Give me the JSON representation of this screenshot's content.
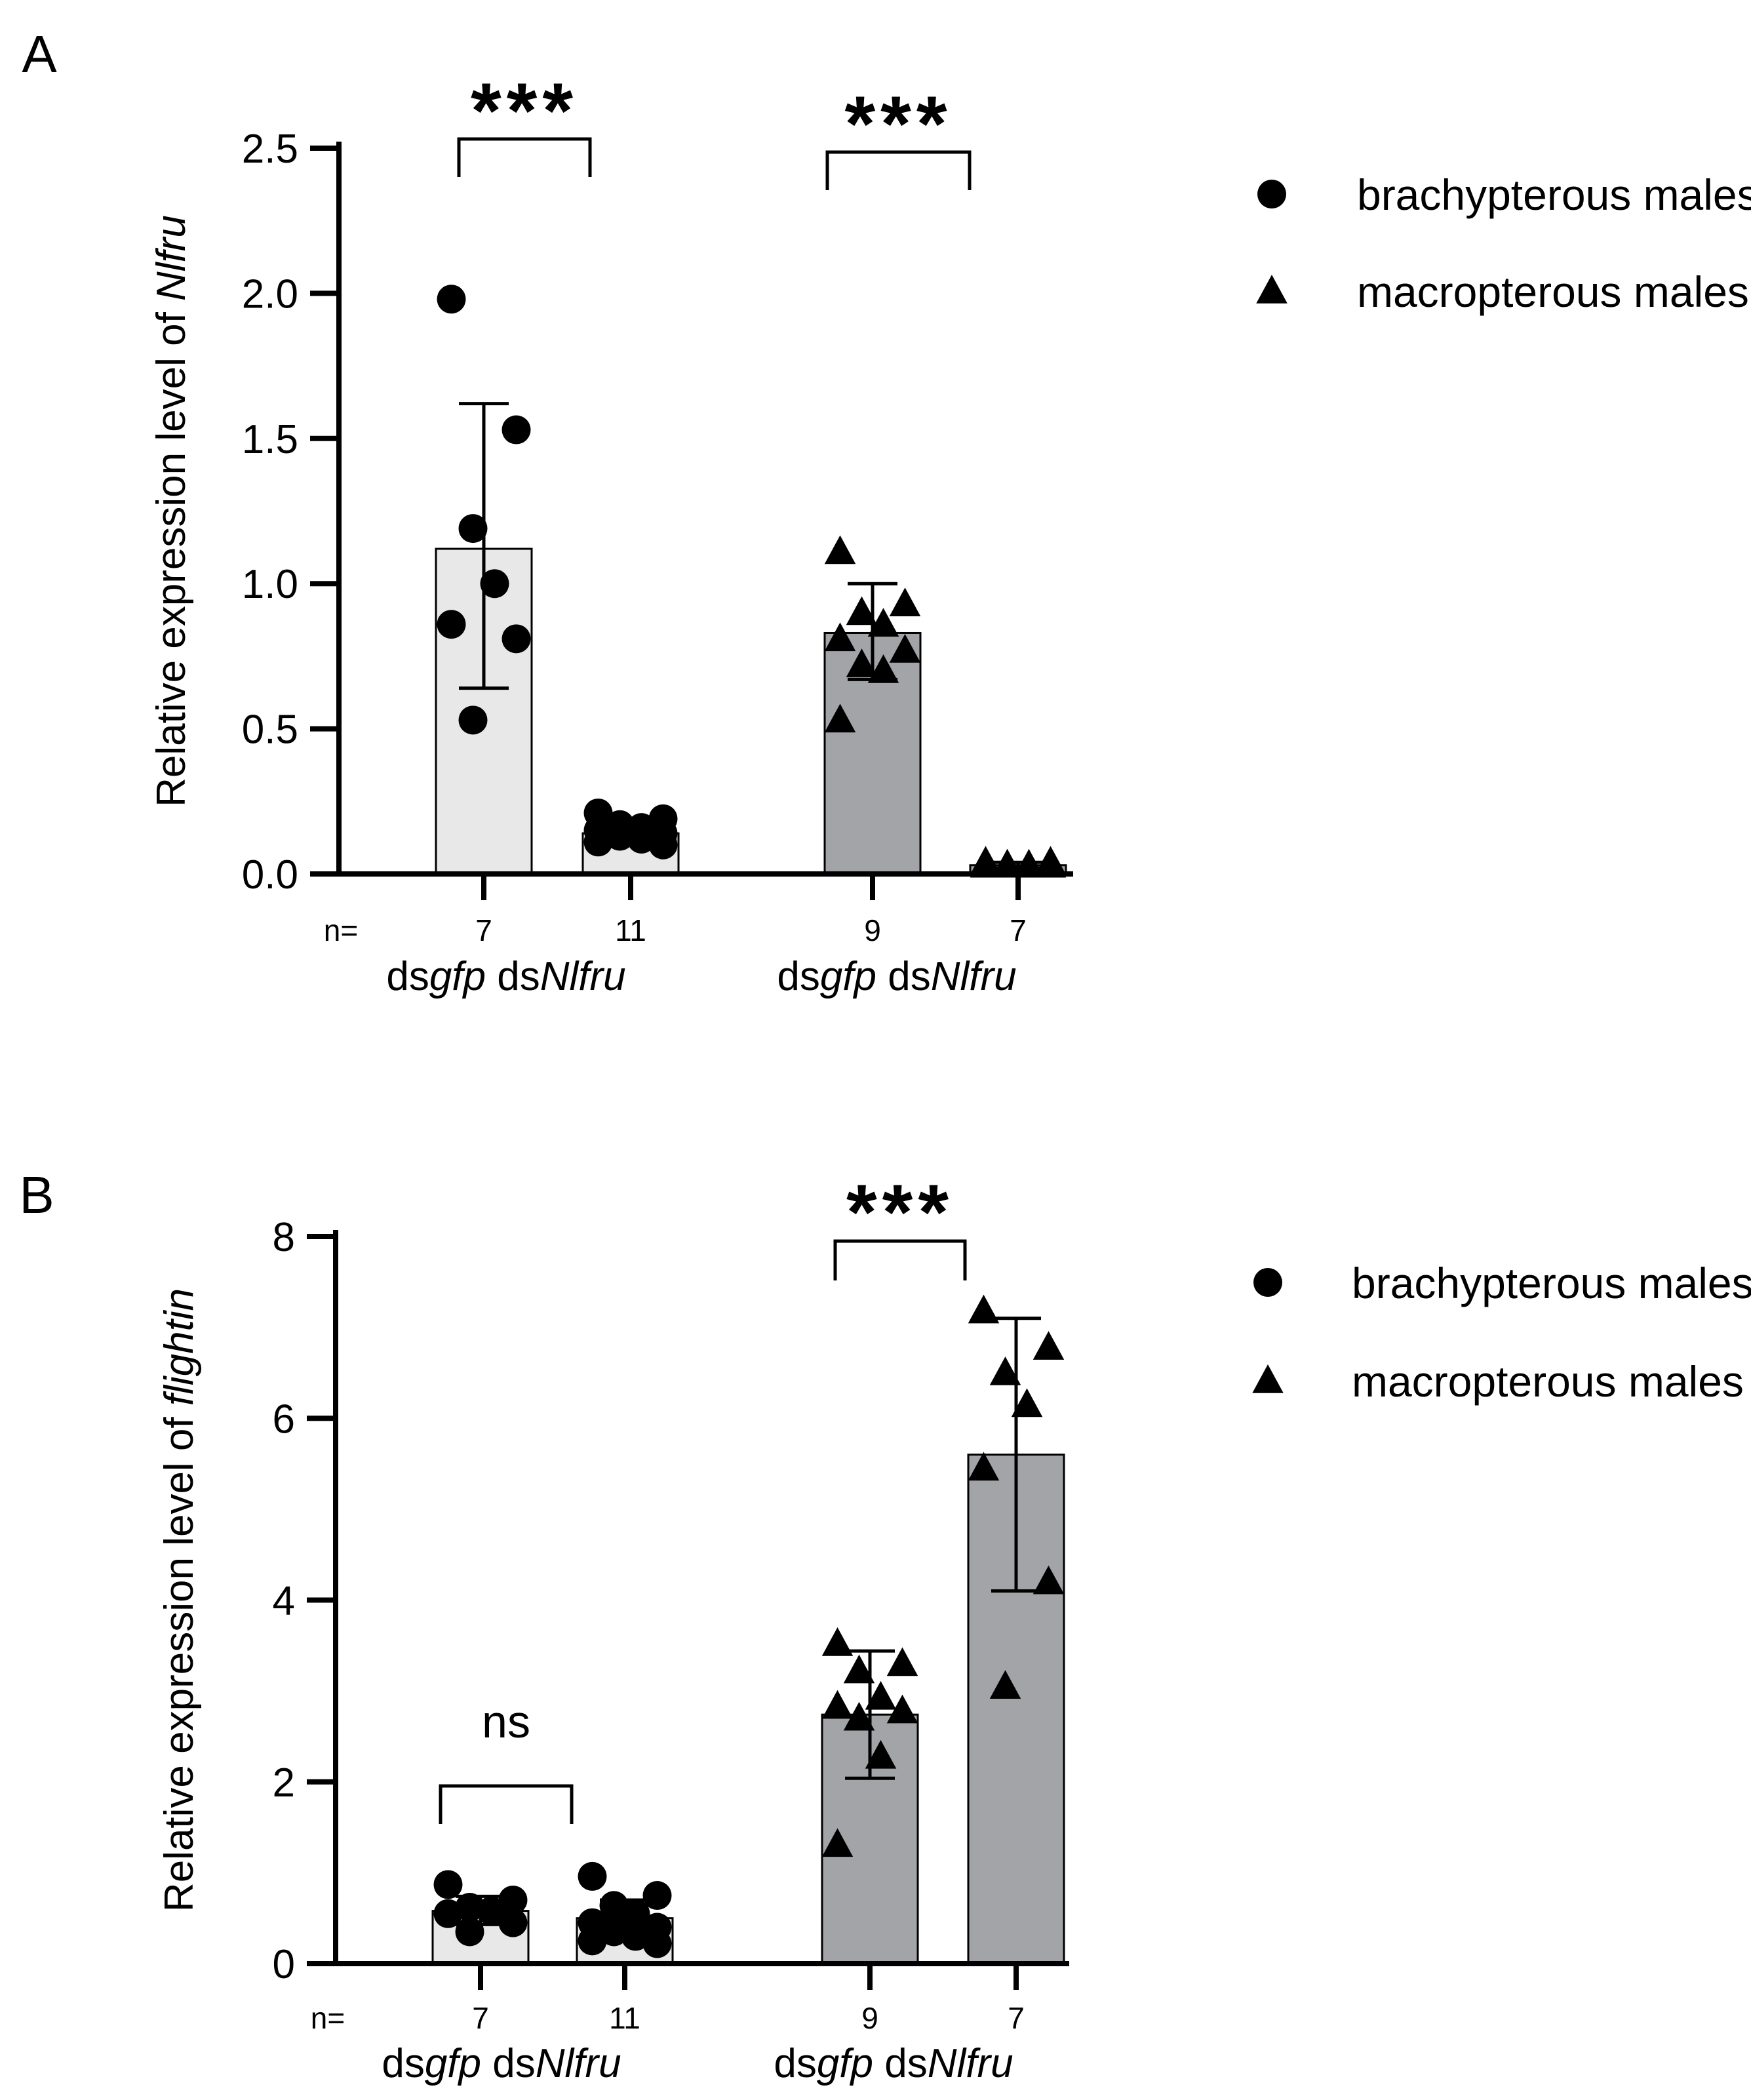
{
  "chart_data": [
    {
      "panel_label": "A",
      "type": "bar",
      "ylabel_prefix": "Relative expression level of ",
      "ylabel_gene": "Nlfru",
      "ylim": [
        0,
        2.5
      ],
      "yticks": [
        "0.0",
        "0.5",
        "1.0",
        "1.5",
        "2.0",
        "2.5"
      ],
      "n_prefix": "n=",
      "groups": [
        {
          "label_ds1": "ds",
          "label_g1": "gfp",
          "label_ds2": " ds",
          "label_g2": "Nlfru",
          "significance": "***"
        },
        {
          "label_ds1": "ds",
          "label_g1": "gfp",
          "label_ds2": " ds",
          "label_g2": "Nlfru",
          "significance": "***"
        }
      ],
      "bars": [
        {
          "treatment": "dsgfp",
          "male_type": "brachypterous males",
          "n": "7",
          "mean": 1.12,
          "sd_low": 0.64,
          "sd_high": 1.62,
          "fill": "#e8e8e8",
          "marker": "circle",
          "points": [
            1.98,
            1.53,
            1.19,
            1.0,
            0.86,
            0.81,
            0.53
          ]
        },
        {
          "treatment": "dsNlfru",
          "male_type": "brachypterous males",
          "n": "11",
          "mean": 0.14,
          "sd_low": 0.11,
          "sd_high": 0.17,
          "fill": "#e8e8e8",
          "marker": "circle",
          "points": [
            0.21,
            0.19,
            0.17,
            0.16,
            0.15,
            0.14,
            0.13,
            0.12,
            0.11,
            0.1,
            0.13
          ]
        },
        {
          "treatment": "dsgfp",
          "male_type": "macropterous males",
          "n": "9",
          "mean": 0.83,
          "sd_low": 0.67,
          "sd_high": 1.0,
          "fill": "#a3a4a7",
          "marker": "triangle",
          "points": [
            1.11,
            0.93,
            0.9,
            0.86,
            0.81,
            0.77,
            0.72,
            0.7,
            0.53
          ]
        },
        {
          "treatment": "dsNlfru",
          "male_type": "macropterous males",
          "n": "7",
          "mean": 0.03,
          "sd_low": 0.02,
          "sd_high": 0.04,
          "fill": "#a3a4a7",
          "marker": "triangle",
          "points": [
            0.04,
            0.04,
            0.03,
            0.03,
            0.03,
            0.03,
            0.03
          ]
        }
      ],
      "legend": [
        {
          "marker": "circle",
          "label": "brachypterous males"
        },
        {
          "marker": "triangle",
          "label": "macropterous males"
        }
      ]
    },
    {
      "panel_label": "B",
      "type": "bar",
      "ylabel_prefix": "Relative expression level of ",
      "ylabel_gene": "flightin",
      "ylim": [
        0,
        8
      ],
      "yticks": [
        "0",
        "2",
        "4",
        "6",
        "8"
      ],
      "n_prefix": "n=",
      "groups": [
        {
          "label_ds1": "ds",
          "label_g1": "gfp",
          "label_ds2": " ds",
          "label_g2": "Nlfru",
          "significance": "ns"
        },
        {
          "label_ds1": "ds",
          "label_g1": "gfp",
          "label_ds2": " ds",
          "label_g2": "Nlfru",
          "significance": "***"
        }
      ],
      "bars": [
        {
          "treatment": "dsgfp",
          "male_type": "brachypterous males",
          "n": "7",
          "mean": 0.58,
          "sd_low": 0.43,
          "sd_high": 0.74,
          "fill": "#e8e8e8",
          "marker": "circle",
          "points": [
            0.87,
            0.7,
            0.62,
            0.58,
            0.55,
            0.45,
            0.35
          ]
        },
        {
          "treatment": "dsNlfru",
          "male_type": "brachypterous males",
          "n": "11",
          "mean": 0.5,
          "sd_low": 0.3,
          "sd_high": 0.7,
          "fill": "#e8e8e8",
          "marker": "circle",
          "points": [
            0.96,
            0.75,
            0.64,
            0.55,
            0.45,
            0.4,
            0.35,
            0.3,
            0.25,
            0.22,
            0.5
          ]
        },
        {
          "treatment": "dsgfp",
          "male_type": "macropterous males",
          "n": "9",
          "mean": 2.74,
          "sd_low": 2.04,
          "sd_high": 3.44,
          "fill": "#a3a4a7",
          "marker": "triangle",
          "points": [
            3.52,
            3.3,
            3.22,
            2.93,
            2.83,
            2.78,
            2.7,
            2.28,
            1.31
          ]
        },
        {
          "treatment": "dsNlfru",
          "male_type": "macropterous males",
          "n": "7",
          "mean": 5.6,
          "sd_low": 4.1,
          "sd_high": 7.1,
          "fill": "#a3a4a7",
          "marker": "triangle",
          "points": [
            7.18,
            6.78,
            6.5,
            6.15,
            5.45,
            4.2,
            3.05
          ]
        }
      ],
      "legend": [
        {
          "marker": "circle",
          "label": "brachypterous males"
        },
        {
          "marker": "triangle",
          "label": "macropterous males"
        }
      ]
    }
  ]
}
